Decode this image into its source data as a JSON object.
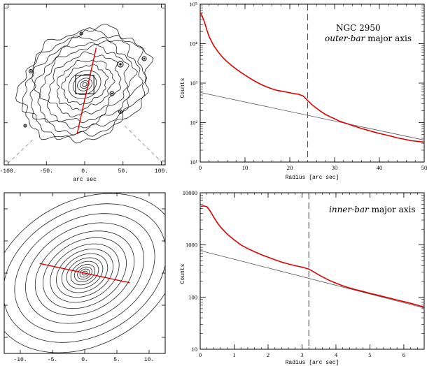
{
  "chart_data": [
    {
      "type": "contour",
      "xlabel": "arc sec",
      "ylabel": "",
      "xlim": [
        -105,
        105
      ],
      "ylim": [
        -105,
        105
      ],
      "x_tick_labels": [
        "-100.",
        "-50.",
        "0.",
        "50.",
        "100."
      ],
      "x_ticks": [
        -100,
        -50,
        0,
        50,
        100
      ],
      "bar_line": {
        "color": "#dd0000",
        "x": [
          -10,
          15
        ],
        "y": [
          -65,
          48
        ]
      },
      "zoom_box": {
        "x": [
          -12,
          12
        ],
        "y": [
          -12,
          12
        ]
      },
      "isophote_semi_major": [
        3,
        6,
        10,
        16,
        22,
        30,
        38,
        48,
        58,
        66,
        74,
        82,
        88
      ],
      "isophote_axis_ratio": 0.78,
      "isophote_pa_deg": 28
    },
    {
      "type": "line",
      "annotation_title": "NGC 2950",
      "annotation_italic": "outer-bar",
      "annotation_rest": " major axis",
      "xlabel": "Radius [arc sec]",
      "ylabel": "Counts",
      "xlim": [
        0,
        50
      ],
      "ylim": [
        10,
        100000
      ],
      "yscale": "log",
      "x_ticks": [
        0,
        10,
        20,
        30,
        40,
        50
      ],
      "x_tick_labels": [
        "0",
        "10",
        "20",
        "30",
        "40",
        "50"
      ],
      "y_tick_labels": [
        "10¹",
        "10²",
        "10³",
        "10⁴",
        "10⁵"
      ],
      "y_ticks": [
        10,
        100,
        1000,
        10000,
        100000
      ],
      "vline": 24,
      "profile": {
        "color": "#dd0000",
        "x": [
          0.05,
          0.5,
          1,
          1.5,
          2,
          3,
          4,
          5,
          6,
          7,
          8,
          9,
          10,
          11,
          12,
          13,
          14,
          15,
          16,
          17,
          18,
          19,
          20,
          21,
          22,
          23,
          24,
          25,
          26,
          27,
          28,
          29,
          30,
          31,
          32,
          33,
          34,
          35,
          36,
          37,
          38,
          39,
          40,
          41,
          42,
          43,
          44,
          45,
          46,
          47,
          48,
          49,
          50
        ],
        "y": [
          62000,
          48000,
          34000,
          22000,
          15000,
          9000,
          6200,
          4500,
          3500,
          2800,
          2300,
          1900,
          1600,
          1350,
          1150,
          1000,
          880,
          790,
          720,
          660,
          630,
          600,
          570,
          540,
          520,
          470,
          360,
          280,
          230,
          190,
          160,
          140,
          125,
          110,
          100,
          92,
          84,
          77,
          71,
          66,
          61,
          57,
          53,
          50,
          47,
          44,
          41,
          39,
          37,
          35,
          34,
          33,
          32
        ]
      },
      "disk_fit": {
        "color": "#555555",
        "x": [
          0,
          50
        ],
        "y": [
          580,
          36
        ]
      }
    },
    {
      "type": "contour",
      "xlabel": "arc sec",
      "ylabel": "",
      "xlim": [
        -12.5,
        12.5
      ],
      "ylim": [
        -12.5,
        12.5
      ],
      "x_ticks": [
        -10,
        -5,
        0,
        5,
        10
      ],
      "x_tick_labels": [
        "-10.",
        "-5.",
        "0.",
        "5.",
        "10."
      ],
      "bar_line": {
        "color": "#dd0000",
        "x": [
          -7,
          7
        ],
        "y": [
          1.5,
          -1.5
        ]
      },
      "isophote_semi_major": [
        0.4,
        0.8,
        1.2,
        1.7,
        2.3,
        3.0,
        3.8,
        4.7,
        5.7,
        6.9,
        8.2,
        9.8,
        11.6,
        13.5,
        15.5
      ],
      "isophote_axis_ratio": 0.72,
      "isophote_pa_deg": 30
    },
    {
      "type": "line",
      "annotation_italic": "inner-bar",
      "annotation_rest": " major axis",
      "xlabel": "Radius [arc sec]",
      "ylabel": "Counts",
      "xlim": [
        0,
        6.6
      ],
      "ylim": [
        10,
        10000
      ],
      "yscale": "log",
      "x_ticks": [
        0,
        1,
        2,
        3,
        4,
        5,
        6
      ],
      "x_tick_labels": [
        "0",
        "1",
        "2",
        "3",
        "4",
        "5",
        "6"
      ],
      "y_ticks": [
        10,
        100,
        1000,
        10000
      ],
      "y_tick_labels": [
        "10",
        "100",
        "1000",
        "10000"
      ],
      "vline": 3.2,
      "profile": {
        "color": "#dd0000",
        "x": [
          0.02,
          0.1,
          0.2,
          0.3,
          0.4,
          0.5,
          0.6,
          0.8,
          1.0,
          1.2,
          1.4,
          1.6,
          1.8,
          2.0,
          2.2,
          2.4,
          2.6,
          2.8,
          3.0,
          3.2,
          3.4,
          3.6,
          3.8,
          4.0,
          4.2,
          4.4,
          4.6,
          4.8,
          5.0,
          5.2,
          5.4,
          5.6,
          5.8,
          6.0,
          6.2,
          6.4,
          6.6
        ],
        "y": [
          5500,
          5600,
          5400,
          4400,
          3400,
          2700,
          2200,
          1600,
          1250,
          1000,
          850,
          740,
          650,
          580,
          520,
          470,
          430,
          400,
          375,
          345,
          290,
          245,
          210,
          185,
          165,
          150,
          138,
          128,
          118,
          110,
          102,
          95,
          88,
          82,
          76,
          70,
          64
        ]
      },
      "disk_fit": {
        "color": "#555555",
        "x": [
          0,
          6.6
        ],
        "y": [
          780,
          62
        ]
      }
    }
  ]
}
